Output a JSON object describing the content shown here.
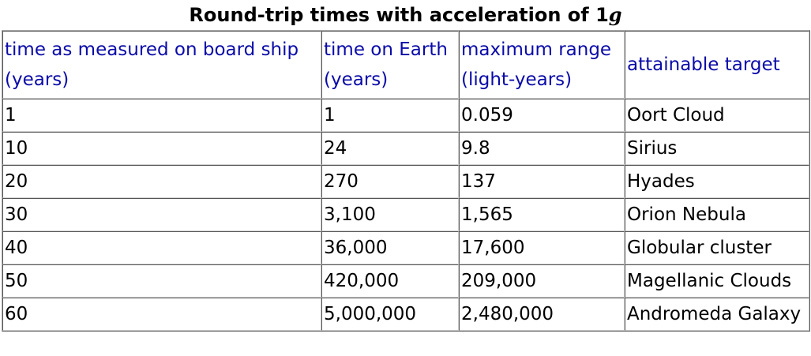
{
  "caption": {
    "prefix": "Round-trip times with acceleration of 1",
    "unit": "g"
  },
  "table": {
    "headers": [
      "time as measured on board ship (years)",
      "time on Earth (years)",
      "maximum range (light-years)",
      "attainable target"
    ],
    "rows": [
      [
        "1",
        "1",
        "0.059",
        "Oort Cloud"
      ],
      [
        "10",
        "24",
        "9.8",
        "Sirius"
      ],
      [
        "20",
        "270",
        "137",
        "Hyades"
      ],
      [
        "30",
        "3,100",
        "1,565",
        "Orion Nebula"
      ],
      [
        "40",
        "36,000",
        "17,600",
        "Globular cluster"
      ],
      [
        "50",
        "420,000",
        "209,000",
        "Magellanic Clouds"
      ],
      [
        "60",
        "5,000,000",
        "2,480,000",
        "Andromeda Galaxy"
      ]
    ]
  },
  "colors": {
    "header_text": "#0a0aa8",
    "body_text": "#000000",
    "border": "#555555"
  }
}
